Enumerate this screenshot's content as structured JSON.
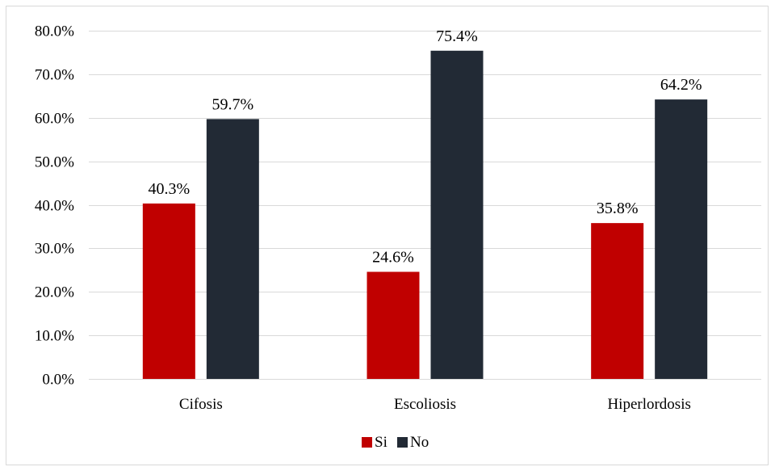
{
  "chart_data": {
    "type": "bar",
    "title": "",
    "xlabel": "",
    "ylabel": "",
    "categories": [
      "Cifosis",
      "Escoliosis",
      "Hiperlordosis"
    ],
    "series": [
      {
        "name": "Si",
        "color": "#c00000",
        "values": [
          40.3,
          24.6,
          35.8
        ],
        "labels": [
          "40.3%",
          "24.6%",
          "35.8%"
        ]
      },
      {
        "name": "No",
        "color": "#222a35",
        "values": [
          59.7,
          75.4,
          64.2
        ],
        "labels": [
          "59.7%",
          "75.4%",
          "64.2%"
        ]
      }
    ],
    "ylim": [
      0,
      80
    ],
    "y_ticks": [
      0,
      10,
      20,
      30,
      40,
      50,
      60,
      70,
      80
    ],
    "y_tick_labels": [
      "0.0%",
      "10.0%",
      "20.0%",
      "30.0%",
      "40.0%",
      "50.0%",
      "60.0%",
      "70.0%",
      "80.0%"
    ],
    "grid": true,
    "gridline_color": "#d9d9d9",
    "legend_position": "bottom"
  }
}
